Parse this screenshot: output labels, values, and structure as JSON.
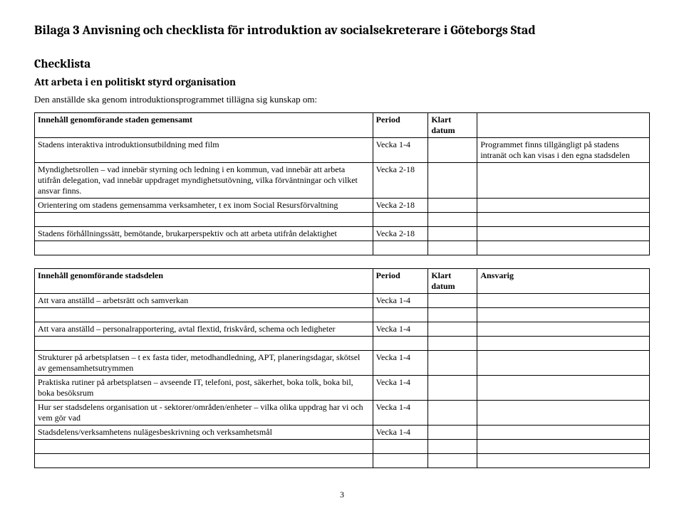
{
  "page_title": "Bilaga 3 Anvisning och checklista för introduktion av socialsekreterare i Göteborgs Stad",
  "section_heading": "Checklista",
  "sub_heading": "Att arbeta i en politiskt styrd organisation",
  "intro_text": "Den anställde ska genom introduktionsprogrammet tillägna sig kunskap om:",
  "table1": {
    "headers": [
      "Innehåll genomförande staden gemensamt",
      "Period",
      "Klart datum",
      ""
    ],
    "rows": [
      [
        "Stadens interaktiva introduktionsutbildning med film",
        "Vecka 1-4",
        "",
        "Programmet finns tillgängligt på stadens intranät och kan visas i den egna stadsdelen"
      ],
      [
        "Myndighetsrollen – vad innebär styrning och ledning i en kommun, vad innebär att arbeta utifrån delegation, vad innebär uppdraget myndighetsutövning, vilka förväntningar och vilket ansvar finns.",
        "Vecka 2-18",
        "",
        ""
      ],
      [
        "Orientering om stadens gemensamma verksamheter, t ex inom Social Resursförvaltning",
        "Vecka 2-18",
        "",
        ""
      ],
      [
        "",
        "",
        "",
        ""
      ],
      [
        "Stadens förhållningssätt, bemötande, brukarperspektiv och att arbeta utifrån delaktighet",
        "Vecka 2-18",
        "",
        ""
      ],
      [
        "",
        "",
        "",
        ""
      ]
    ]
  },
  "table2": {
    "headers": [
      "Innehåll genomförande stadsdelen",
      "Period",
      "Klart datum",
      "Ansvarig"
    ],
    "rows": [
      [
        "Att vara anställd – arbetsrätt och samverkan",
        "Vecka 1-4",
        "",
        ""
      ],
      [
        "",
        "",
        "",
        ""
      ],
      [
        "Att vara anställd – personalrapportering, avtal flextid, friskvård, schema och ledigheter",
        "Vecka 1-4",
        "",
        ""
      ],
      [
        "",
        "",
        "",
        ""
      ],
      [
        "Strukturer på arbetsplatsen – t ex fasta tider, metodhandledning, APT, planeringsdagar, skötsel av gemensamhetsutrymmen",
        "Vecka 1-4",
        "",
        ""
      ],
      [
        "Praktiska rutiner på arbetsplatsen – avseende IT, telefoni, post, säkerhet, boka tolk, boka bil, boka besöksrum",
        "Vecka 1-4",
        "",
        ""
      ],
      [
        "Hur ser stadsdelens organisation ut - sektorer/områden/enheter – vilka olika uppdrag har vi och vem gör vad",
        "Vecka 1-4",
        "",
        ""
      ],
      [
        "Stadsdelens/verksamhetens nulägesbeskrivning och verksamhetsmål",
        "Vecka 1-4",
        "",
        ""
      ],
      [
        "",
        "",
        "",
        ""
      ],
      [
        "",
        "",
        "",
        ""
      ]
    ]
  },
  "page_number": "3"
}
